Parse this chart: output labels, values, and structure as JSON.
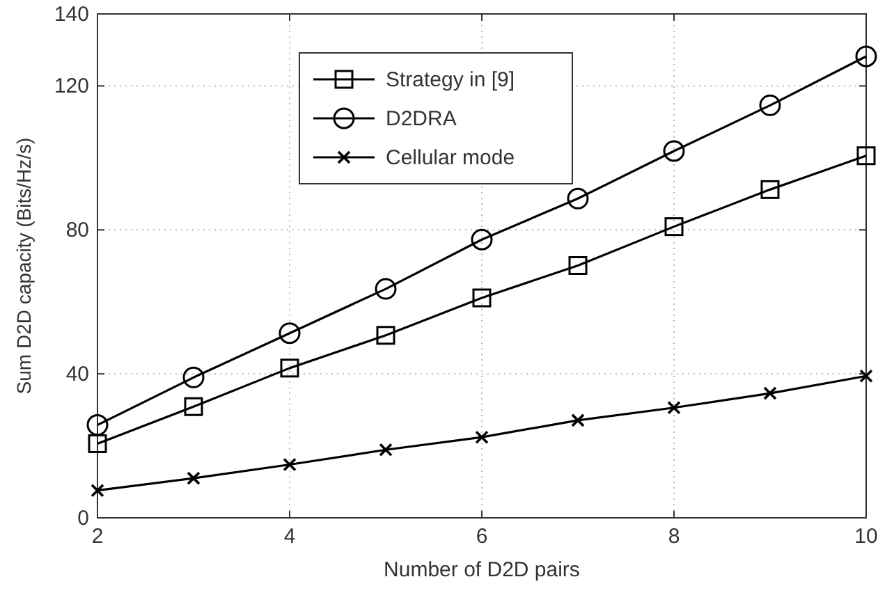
{
  "chart_data": {
    "type": "line",
    "xlabel": "Number of D2D pairs",
    "ylabel": "Sum D2D capacity (Bits/Hz/s)",
    "x": [
      2,
      3,
      4,
      5,
      6,
      7,
      8,
      9,
      10
    ],
    "xlim": [
      2,
      10
    ],
    "xticks": [
      2,
      4,
      6,
      8,
      10
    ],
    "ylim": [
      0,
      140
    ],
    "yticks": [
      0,
      40,
      80,
      120,
      140
    ],
    "grid": true,
    "legend": "top",
    "line_style": "solid",
    "series": [
      {
        "name": "Strategy in [9]",
        "color": "#000000",
        "marker": "square",
        "values": [
          20.6,
          30.9,
          41.6,
          50.7,
          61.1,
          70.1,
          80.9,
          91.2,
          100.6
        ]
      },
      {
        "name": "D2DRA",
        "color": "#000000",
        "marker": "circle",
        "values": [
          25.8,
          39,
          51.3,
          63.6,
          77.3,
          88.7,
          101.9,
          114.6,
          128.2
        ]
      },
      {
        "name": "Cellular mode",
        "color": "#000000",
        "marker": "cross",
        "values": [
          7.6,
          11,
          14.8,
          18.9,
          22.4,
          27.1,
          30.6,
          34.6,
          39.4
        ]
      }
    ]
  }
}
